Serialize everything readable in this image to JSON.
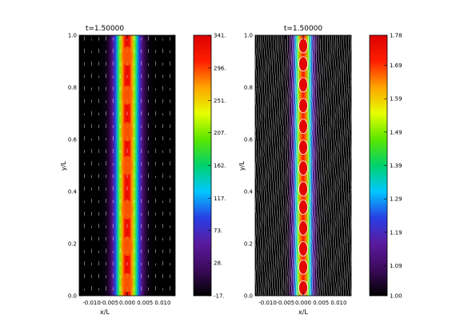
{
  "chart_data": [
    {
      "type": "heatmap",
      "title": "t=1.50000",
      "xlabel": "x/L",
      "ylabel": "y/L",
      "xlim": [
        -0.0135,
        0.0135
      ],
      "ylim": [
        0.0,
        1.0
      ],
      "x_ticks": [
        -0.01,
        -0.005,
        0.0,
        0.005,
        0.01
      ],
      "x_tick_labels": [
        "-0.010",
        "-0.005",
        "0.000",
        "0.005",
        "0.010"
      ],
      "y_ticks": [
        0.0,
        0.2,
        0.4,
        0.6,
        0.8,
        1.0
      ],
      "y_tick_labels": [
        "0.0",
        "0.2",
        "0.4",
        "0.6",
        "0.8",
        "1.0"
      ],
      "overlay": "velocity-vectors",
      "colorbar": {
        "min": -17,
        "max": 341,
        "ticks": [
          -17,
          28,
          73,
          117,
          162,
          207,
          251,
          296,
          341
        ],
        "tick_labels": [
          "-17.",
          "28.",
          "73.",
          "117.",
          "162.",
          "207.",
          "251.",
          "296.",
          "341."
        ]
      },
      "profile": {
        "peak": 341,
        "background": -17,
        "core_width": 0.0022
      }
    },
    {
      "type": "heatmap",
      "title": "t=1.50000",
      "xlabel": "x/L",
      "ylabel": "y/L",
      "xlim": [
        -0.0135,
        0.0135
      ],
      "ylim": [
        0.0,
        1.0
      ],
      "x_ticks": [
        -0.01,
        -0.005,
        0.0,
        0.005,
        0.01
      ],
      "x_tick_labels": [
        "-0.010",
        "-0.005",
        "0.000",
        "0.005",
        "0.010"
      ],
      "y_ticks": [
        0.0,
        0.2,
        0.4,
        0.6,
        0.8,
        1.0
      ],
      "y_tick_labels": [
        "0.0",
        "0.2",
        "0.4",
        "0.6",
        "0.8",
        "1.0"
      ],
      "overlay": "field-lines",
      "colorbar": {
        "min": 1.0,
        "max": 1.78,
        "ticks": [
          1.0,
          1.09,
          1.19,
          1.29,
          1.39,
          1.49,
          1.59,
          1.69,
          1.78
        ],
        "tick_labels": [
          "1.00",
          "1.09",
          "1.19",
          "1.29",
          "1.39",
          "1.49",
          "1.59",
          "1.69",
          "1.78"
        ]
      },
      "profile": {
        "peak": 1.78,
        "background": 1.0,
        "core_width": 0.0016,
        "blob_y": [
          0.03,
          0.11,
          0.18,
          0.26,
          0.34,
          0.41,
          0.49,
          0.57,
          0.65,
          0.73,
          0.81,
          0.89,
          0.96
        ]
      }
    }
  ],
  "colors": {
    "colormap": [
      "#000000",
      "#3c0a5a",
      "#5a1a9e",
      "#2840e6",
      "#00c8ff",
      "#00d26e",
      "#5ae600",
      "#e6ff00",
      "#ffa500",
      "#ff1e00",
      "#dc0000"
    ],
    "vector_color": "#ffffff",
    "field_line_color": "#ffffff",
    "contour_color": "#ffffff"
  }
}
